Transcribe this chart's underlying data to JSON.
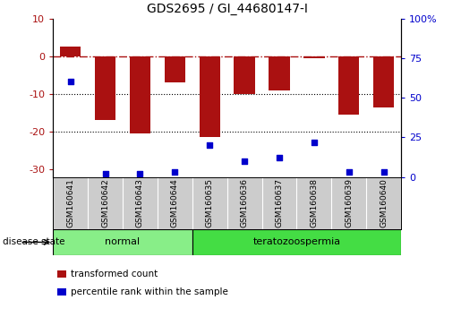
{
  "title": "GDS2695 / GI_44680147-I",
  "samples": [
    "GSM160641",
    "GSM160642",
    "GSM160643",
    "GSM160644",
    "GSM160635",
    "GSM160636",
    "GSM160637",
    "GSM160638",
    "GSM160639",
    "GSM160640"
  ],
  "bar_values": [
    2.5,
    -17.0,
    -20.5,
    -7.0,
    -21.5,
    -10.0,
    -9.0,
    -0.5,
    -15.5,
    -13.5
  ],
  "dot_values": [
    60,
    2,
    2,
    3,
    20,
    10,
    12,
    22,
    3,
    3
  ],
  "ylim_left": [
    -32,
    10
  ],
  "ylim_right": [
    0,
    100
  ],
  "bar_color": "#AA1111",
  "dot_color": "#0000CC",
  "hline_y": 0,
  "dotted_lines": [
    -10,
    -20
  ],
  "groups": [
    {
      "label": "normal",
      "start": 0,
      "end": 4,
      "color": "#88EE88"
    },
    {
      "label": "teratozoospermia",
      "start": 4,
      "end": 10,
      "color": "#44DD44"
    }
  ],
  "disease_state_label": "disease state",
  "legend_items": [
    {
      "label": "transformed count",
      "color": "#AA1111"
    },
    {
      "label": "percentile rank within the sample",
      "color": "#0000CC"
    }
  ],
  "right_yticks": [
    0,
    25,
    50,
    75,
    100
  ],
  "right_yticklabels": [
    "0",
    "25",
    "50",
    "75",
    "100%"
  ],
  "left_yticks": [
    -30,
    -20,
    -10,
    0,
    10
  ],
  "background_color": "#ffffff",
  "tick_area_bg": "#cccccc"
}
